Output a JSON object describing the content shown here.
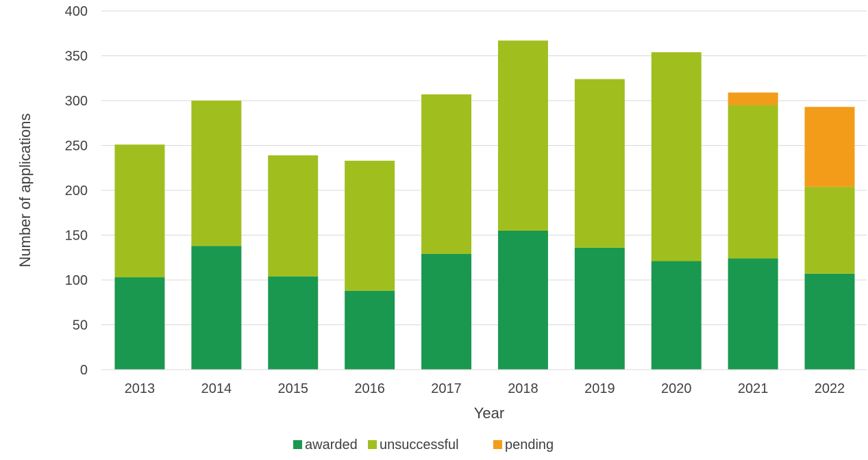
{
  "chart_data": {
    "type": "bar",
    "stacked": true,
    "title": "",
    "xlabel": "Year",
    "ylabel": "Number of applications",
    "ylim": [
      0,
      400
    ],
    "yticks": [
      0,
      50,
      100,
      150,
      200,
      250,
      300,
      350,
      400
    ],
    "grid": "horizontal",
    "legend_position": "bottom",
    "categories": [
      "2013",
      "2014",
      "2015",
      "2016",
      "2017",
      "2018",
      "2019",
      "2020",
      "2021",
      "2022"
    ],
    "series": [
      {
        "name": "awarded",
        "color": "#1a9850",
        "values": [
          103,
          138,
          104,
          88,
          129,
          155,
          136,
          121,
          124,
          107
        ]
      },
      {
        "name": "unsuccessful",
        "color": "#a0bf1f",
        "values": [
          148,
          162,
          135,
          145,
          178,
          212,
          188,
          233,
          171,
          97
        ]
      },
      {
        "name": "pending",
        "color": "#f39c19",
        "values": [
          0,
          0,
          0,
          0,
          0,
          0,
          0,
          0,
          14,
          89
        ]
      }
    ]
  }
}
